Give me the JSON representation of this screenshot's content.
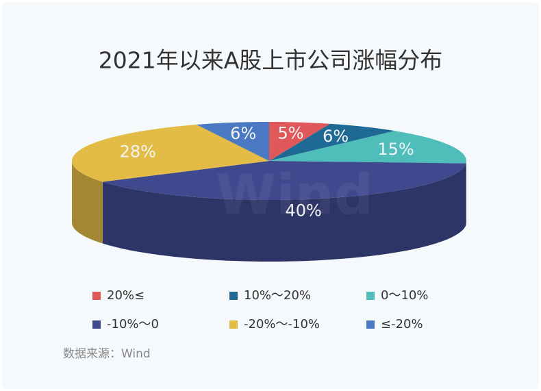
{
  "chart_data": {
    "type": "pie",
    "title": "2021年以来A股上市公司涨幅分布",
    "categories": [
      "20%≤",
      "10%～20%",
      "0～10%",
      "-10%～0",
      "-20%～-10%",
      "≤-20%"
    ],
    "values": [
      5,
      6,
      15,
      40,
      28,
      6
    ],
    "value_labels": [
      "5%",
      "6%",
      "15%",
      "40%",
      "28%",
      "6%"
    ],
    "colors": [
      "#e0585a",
      "#1f6a94",
      "#4fbdb9",
      "#3f4a8e",
      "#e2bc47",
      "#4a78c2"
    ],
    "watermark": "Wind",
    "source": "数据来源：Wind"
  }
}
